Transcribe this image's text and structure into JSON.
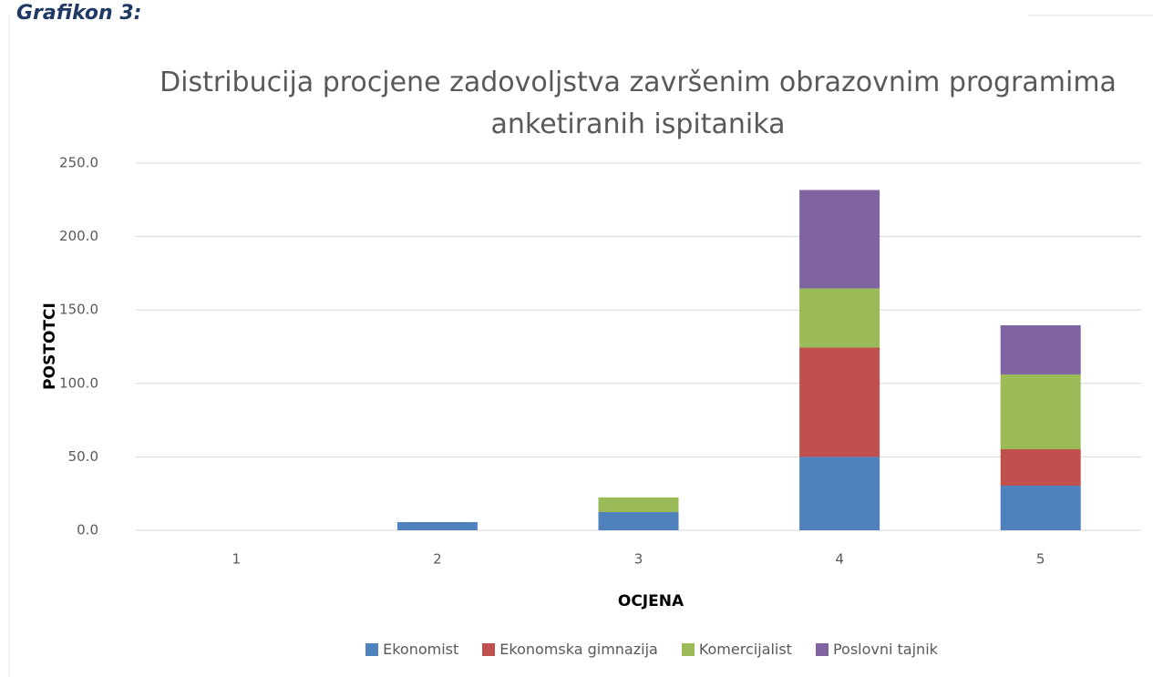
{
  "page_label": "Grafikon 3:",
  "chart_data": {
    "type": "stacked_bar",
    "title": "Distribucija procjene zadovoljstva završenim obrazovnim programima anketiranih ispitanika",
    "x_label": "OCJENA",
    "y_label": "POSTOTCI",
    "categories": [
      "1",
      "2",
      "3",
      "4",
      "5"
    ],
    "series": [
      {
        "name": "Ekonomist",
        "color": "#4f81bd",
        "values": [
          0,
          5.6,
          12.4,
          50,
          30.4
        ]
      },
      {
        "name": "Ekonomska gimnazija",
        "color": "#c0504d",
        "values": [
          0,
          0,
          0,
          74.4,
          24.8
        ]
      },
      {
        "name": "Komercijalist",
        "color": "#9bbb59",
        "values": [
          0,
          0,
          10,
          40.3,
          50.9
        ]
      },
      {
        "name": "Poslovni tajnik",
        "color": "#8064a2",
        "values": [
          0,
          0,
          0,
          67,
          33.5
        ]
      }
    ],
    "ylim": [
      0,
      250
    ],
    "yticks": [
      {
        "value": 0,
        "label": "0.0"
      },
      {
        "value": 50,
        "label": "50.0"
      },
      {
        "value": 100,
        "label": "100.0"
      },
      {
        "value": 150,
        "label": "150.0"
      },
      {
        "value": 200,
        "label": "200.0"
      },
      {
        "value": 250,
        "label": "250.0"
      }
    ],
    "grid": true,
    "legend": "bottom"
  }
}
